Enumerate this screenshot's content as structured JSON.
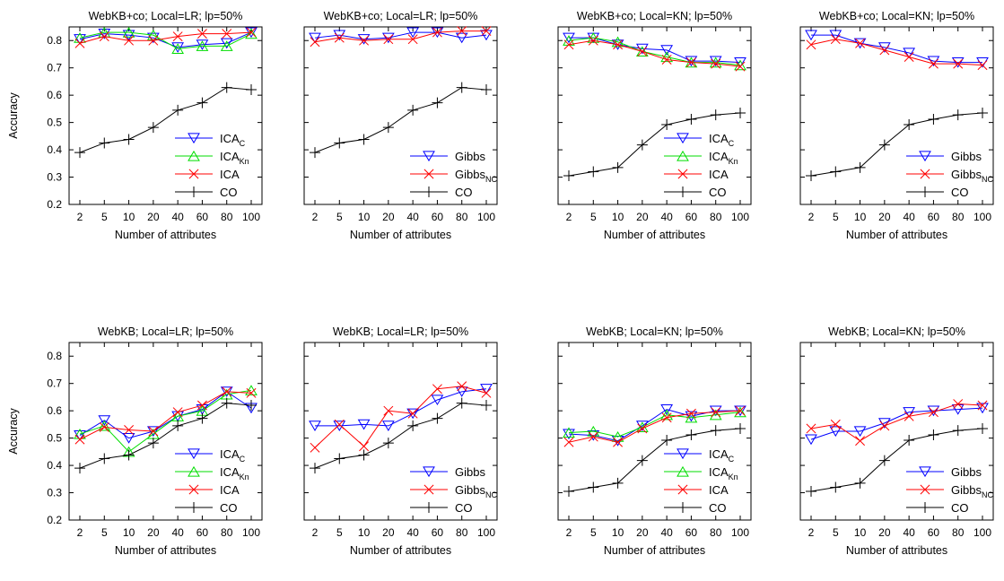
{
  "series_styles": {
    "ICA_C": {
      "color": "#0000ff",
      "marker": "triangle-down"
    },
    "ICA_Kn": {
      "color": "#00dd00",
      "marker": "triangle-up"
    },
    "ICA": {
      "color": "#ff0000",
      "marker": "x"
    },
    "CO": {
      "color": "#000000",
      "marker": "plus"
    },
    "Gibbs": {
      "color": "#0000ff",
      "marker": "triangle-down"
    },
    "Gibbs_NC": {
      "color": "#ff0000",
      "marker": "x"
    }
  },
  "chart_data": [
    {
      "type": "line",
      "title": "WebKB+co; Local=LR; lp=50%",
      "xlabel": "Number of attributes",
      "ylabel": "Accuracy",
      "categories": [
        "2",
        "5",
        "10",
        "20",
        "40",
        "60",
        "80",
        "100"
      ],
      "ylim": [
        0.2,
        0.85
      ],
      "yticks": [
        "0.2",
        "0.3",
        "0.4",
        "0.5",
        "0.6",
        "0.7",
        "0.8"
      ],
      "legend_position": "bottom-right",
      "series": [
        {
          "key": "ICA_C",
          "name": "ICA",
          "sub": "C",
          "values": [
            0.805,
            0.825,
            0.82,
            0.81,
            0.775,
            0.785,
            0.79,
            0.83
          ]
        },
        {
          "key": "ICA_Kn",
          "name": "ICA",
          "sub": "Kn",
          "values": [
            0.81,
            0.83,
            0.83,
            0.82,
            0.77,
            0.78,
            0.78,
            0.825
          ]
        },
        {
          "key": "ICA",
          "name": "ICA",
          "sub": "",
          "values": [
            0.79,
            0.815,
            0.8,
            0.8,
            0.815,
            0.825,
            0.825,
            0.83
          ]
        },
        {
          "key": "CO",
          "name": "CO",
          "sub": "",
          "values": [
            0.39,
            0.425,
            0.438,
            0.482,
            0.545,
            0.572,
            0.628,
            0.62
          ]
        }
      ]
    },
    {
      "type": "line",
      "title": "WebKB+co; Local=LR; lp=50%",
      "xlabel": "Number of attributes",
      "ylabel": "",
      "categories": [
        "2",
        "5",
        "10",
        "20",
        "40",
        "60",
        "80",
        "100"
      ],
      "ylim": [
        0.2,
        0.85
      ],
      "yticks": [],
      "legend_position": "bottom-right",
      "series": [
        {
          "key": "Gibbs",
          "name": "Gibbs",
          "sub": "",
          "values": [
            0.81,
            0.82,
            0.805,
            0.81,
            0.83,
            0.83,
            0.81,
            0.82
          ]
        },
        {
          "key": "Gibbs_NC",
          "name": "Gibbs",
          "sub": "NC",
          "values": [
            0.795,
            0.81,
            0.8,
            0.805,
            0.805,
            0.83,
            0.835,
            0.835
          ]
        },
        {
          "key": "CO",
          "name": "CO",
          "sub": "",
          "values": [
            0.39,
            0.425,
            0.438,
            0.482,
            0.545,
            0.572,
            0.628,
            0.62
          ]
        }
      ]
    },
    {
      "type": "line",
      "title": "WebKB+co; Local=KN; lp=50%",
      "xlabel": "Number of attributes",
      "ylabel": "",
      "categories": [
        "2",
        "5",
        "10",
        "20",
        "40",
        "60",
        "80",
        "100"
      ],
      "ylim": [
        0.2,
        0.85
      ],
      "yticks": [],
      "legend_position": "bottom-right",
      "series": [
        {
          "key": "ICA_C",
          "name": "ICA",
          "sub": "C",
          "values": [
            0.81,
            0.81,
            0.785,
            0.77,
            0.765,
            0.725,
            0.725,
            0.72
          ]
        },
        {
          "key": "ICA_Kn",
          "name": "ICA",
          "sub": "Kn",
          "values": [
            0.8,
            0.81,
            0.795,
            0.76,
            0.74,
            0.72,
            0.72,
            0.71
          ]
        },
        {
          "key": "ICA",
          "name": "ICA",
          "sub": "",
          "values": [
            0.785,
            0.8,
            0.785,
            0.76,
            0.73,
            0.72,
            0.715,
            0.705
          ]
        },
        {
          "key": "CO",
          "name": "CO",
          "sub": "",
          "values": [
            0.305,
            0.32,
            0.335,
            0.418,
            0.492,
            0.512,
            0.528,
            0.535
          ]
        }
      ]
    },
    {
      "type": "line",
      "title": "WebKB+co; Local=KN; lp=50%",
      "xlabel": "Number of attributes",
      "ylabel": "",
      "categories": [
        "2",
        "5",
        "10",
        "20",
        "40",
        "60",
        "80",
        "100"
      ],
      "ylim": [
        0.2,
        0.85
      ],
      "yticks": [],
      "legend_position": "bottom-right",
      "series": [
        {
          "key": "Gibbs",
          "name": "Gibbs",
          "sub": "",
          "values": [
            0.82,
            0.82,
            0.79,
            0.775,
            0.755,
            0.725,
            0.72,
            0.72
          ]
        },
        {
          "key": "Gibbs_NC",
          "name": "Gibbs",
          "sub": "NC",
          "values": [
            0.785,
            0.805,
            0.79,
            0.765,
            0.74,
            0.715,
            0.715,
            0.71
          ]
        },
        {
          "key": "CO",
          "name": "CO",
          "sub": "",
          "values": [
            0.305,
            0.32,
            0.335,
            0.418,
            0.492,
            0.512,
            0.528,
            0.535
          ]
        }
      ]
    },
    {
      "type": "line",
      "title": "WebKB; Local=LR; lp=50%",
      "xlabel": "Number of attributes",
      "ylabel": "Accuracy",
      "categories": [
        "2",
        "5",
        "10",
        "20",
        "40",
        "60",
        "80",
        "100"
      ],
      "ylim": [
        0.2,
        0.85
      ],
      "yticks": [
        "0.2",
        "0.3",
        "0.4",
        "0.5",
        "0.6",
        "0.7",
        "0.8"
      ],
      "legend_position": "bottom-right",
      "series": [
        {
          "key": "ICA_C",
          "name": "ICA",
          "sub": "C",
          "values": [
            0.51,
            0.565,
            0.5,
            0.525,
            0.58,
            0.605,
            0.67,
            0.61
          ]
        },
        {
          "key": "ICA_Kn",
          "name": "ICA",
          "sub": "Kn",
          "values": [
            0.515,
            0.545,
            0.45,
            0.515,
            0.58,
            0.6,
            0.66,
            0.675
          ]
        },
        {
          "key": "ICA",
          "name": "ICA",
          "sub": "",
          "values": [
            0.495,
            0.54,
            0.53,
            0.525,
            0.595,
            0.62,
            0.67,
            0.665
          ]
        },
        {
          "key": "CO",
          "name": "CO",
          "sub": "",
          "values": [
            0.39,
            0.425,
            0.438,
            0.482,
            0.545,
            0.572,
            0.628,
            0.62
          ]
        }
      ]
    },
    {
      "type": "line",
      "title": "WebKB; Local=LR; lp=50%",
      "xlabel": "Number of attributes",
      "ylabel": "",
      "categories": [
        "2",
        "5",
        "10",
        "20",
        "40",
        "60",
        "80",
        "100"
      ],
      "ylim": [
        0.2,
        0.85
      ],
      "yticks": [],
      "legend_position": "bottom-right",
      "series": [
        {
          "key": "Gibbs",
          "name": "Gibbs",
          "sub": "",
          "values": [
            0.545,
            0.545,
            0.55,
            0.545,
            0.59,
            0.64,
            0.67,
            0.68
          ]
        },
        {
          "key": "Gibbs_NC",
          "name": "Gibbs",
          "sub": "NC",
          "values": [
            0.465,
            0.55,
            0.47,
            0.6,
            0.59,
            0.68,
            0.69,
            0.665
          ]
        },
        {
          "key": "CO",
          "name": "CO",
          "sub": "",
          "values": [
            0.39,
            0.425,
            0.438,
            0.482,
            0.545,
            0.572,
            0.628,
            0.62
          ]
        }
      ]
    },
    {
      "type": "line",
      "title": "WebKB; Local=KN; lp=50%",
      "xlabel": "Number of attributes",
      "ylabel": "",
      "categories": [
        "2",
        "5",
        "10",
        "20",
        "40",
        "60",
        "80",
        "100"
      ],
      "ylim": [
        0.2,
        0.85
      ],
      "yticks": [],
      "legend_position": "bottom-right",
      "series": [
        {
          "key": "ICA_C",
          "name": "ICA",
          "sub": "C",
          "values": [
            0.515,
            0.51,
            0.49,
            0.545,
            0.605,
            0.58,
            0.6,
            0.6
          ]
        },
        {
          "key": "ICA_Kn",
          "name": "ICA",
          "sub": "Kn",
          "values": [
            0.52,
            0.525,
            0.505,
            0.54,
            0.585,
            0.575,
            0.585,
            0.595
          ]
        },
        {
          "key": "ICA",
          "name": "ICA",
          "sub": "",
          "values": [
            0.485,
            0.505,
            0.485,
            0.535,
            0.575,
            0.59,
            0.595,
            0.6
          ]
        },
        {
          "key": "CO",
          "name": "CO",
          "sub": "",
          "values": [
            0.305,
            0.32,
            0.335,
            0.418,
            0.492,
            0.512,
            0.528,
            0.535
          ]
        }
      ]
    },
    {
      "type": "line",
      "title": "WebKB; Local=KN; lp=50%",
      "xlabel": "Number of attributes",
      "ylabel": "",
      "categories": [
        "2",
        "5",
        "10",
        "20",
        "40",
        "60",
        "80",
        "100"
      ],
      "ylim": [
        0.2,
        0.85
      ],
      "yticks": [],
      "legend_position": "bottom-right",
      "series": [
        {
          "key": "Gibbs",
          "name": "Gibbs",
          "sub": "",
          "values": [
            0.495,
            0.525,
            0.525,
            0.555,
            0.595,
            0.6,
            0.605,
            0.61
          ]
        },
        {
          "key": "Gibbs_NC",
          "name": "Gibbs",
          "sub": "NC",
          "values": [
            0.535,
            0.55,
            0.49,
            0.545,
            0.58,
            0.595,
            0.625,
            0.62
          ]
        },
        {
          "key": "CO",
          "name": "CO",
          "sub": "",
          "values": [
            0.305,
            0.32,
            0.335,
            0.418,
            0.492,
            0.512,
            0.528,
            0.535
          ]
        }
      ]
    }
  ]
}
